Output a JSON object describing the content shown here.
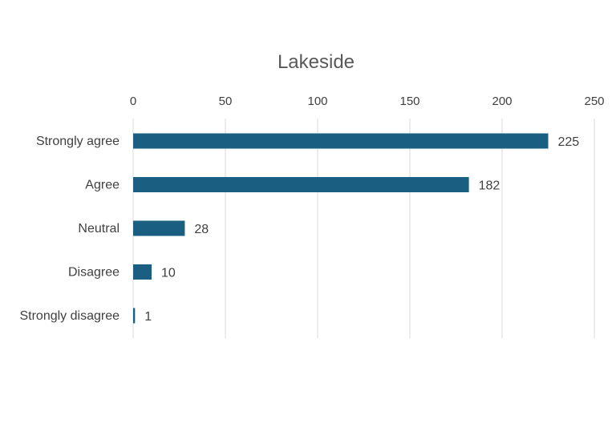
{
  "chart_data": {
    "type": "bar",
    "orientation": "horizontal",
    "title": "Lakeside",
    "xlabel": "",
    "ylabel": "",
    "categories": [
      "Strongly agree",
      "Agree",
      "Neutral",
      "Disagree",
      "Strongly disagree"
    ],
    "values": [
      225,
      182,
      28,
      10,
      1
    ],
    "xlim": [
      0,
      250
    ],
    "ticks": [
      0,
      50,
      100,
      150,
      200,
      250
    ],
    "axis_position": "top",
    "grid": true,
    "legend": "none",
    "bar_color": "#1a5f82",
    "grid_color": "#d9d9d9",
    "text_color": "#404040",
    "title_color": "#595959"
  }
}
